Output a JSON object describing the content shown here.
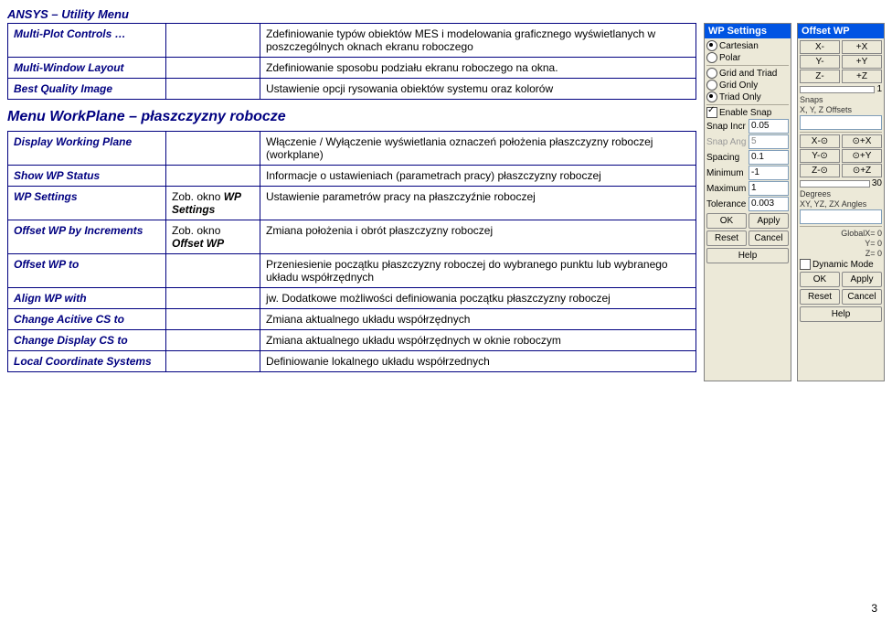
{
  "header": "ANSYS – Utility Menu",
  "table1_rows": [
    {
      "c1": "Multi-Plot Controls …",
      "c3": "Zdefiniowanie typów obiektów MES i modelowania graficznego wyświetlanych w poszczególnych oknach ekranu roboczego"
    },
    {
      "c1": "Multi-Window Layout",
      "c3": "Zdefiniowanie sposobu podziału ekranu roboczego na okna."
    },
    {
      "c1": "Best Quality Image",
      "c3": "Ustawienie opcji rysowania obiektów systemu oraz kolorów"
    }
  ],
  "section_title": "Menu WorkPlane – płaszczyzny robocze",
  "table2_rows": [
    {
      "c1": "Display Working Plane",
      "c2": "",
      "c3": "Włączenie / Wyłączenie wyświetlania oznaczeń położenia płaszczyzny roboczej (workplane)"
    },
    {
      "c1": "Show WP Status",
      "c2": "",
      "c3": "Informacje o ustawieniach (parametrach pracy) płaszczyzny roboczej"
    },
    {
      "c1": "WP Settings",
      "c2": "Zob. okno WP Settings",
      "c3": "Ustawienie parametrów pracy na płaszczyźnie roboczej"
    },
    {
      "c1": "Offset WP by Increments",
      "c2": "Zob. okno Offset WP",
      "c3": "Zmiana położenia i obrót płaszczyzny roboczej"
    },
    {
      "c1": "Offset WP to",
      "c2": "",
      "c3": "Przeniesienie początku płaszczyzny roboczej do wybranego punktu lub wybranego układu współrzędnych"
    },
    {
      "c1": "Align WP with",
      "c2": "",
      "c3": "jw. Dodatkowe możliwości definiowania początku płaszczyzny roboczej"
    },
    {
      "c1": "Change Acitive CS to",
      "c2": "",
      "c3": "Zmiana aktualnego układu współrzędnych"
    },
    {
      "c1": "Change Display CS to",
      "c2": "",
      "c3": "Zmiana aktualnego układu współrzędnych w oknie roboczym"
    },
    {
      "c1": "Local Coordinate Systems",
      "c2": "",
      "c3": "Definiowanie lokalnego układu współrzednych"
    }
  ],
  "wp_settings_panel": {
    "title": "WP Settings",
    "coord_opts": [
      {
        "label": "Cartesian",
        "checked": true
      },
      {
        "label": "Polar",
        "checked": false
      }
    ],
    "grid_opts": [
      {
        "label": "Grid and Triad",
        "checked": false
      },
      {
        "label": "Grid Only",
        "checked": false
      },
      {
        "label": "Triad Only",
        "checked": true
      }
    ],
    "enable_snap": {
      "label": "Enable Snap",
      "checked": true
    },
    "fields": [
      {
        "label": "Snap Incr",
        "value": "0.05",
        "gray": false
      },
      {
        "label": "Snap Ang",
        "value": "5",
        "gray": true
      },
      {
        "label": "Spacing",
        "value": "0.1",
        "gray": false
      },
      {
        "label": "Minimum",
        "value": "-1",
        "gray": false
      },
      {
        "label": "Maximum",
        "value": "1",
        "gray": false
      },
      {
        "label": "Tolerance",
        "value": "0.003",
        "gray": false
      }
    ],
    "btns": [
      "OK",
      "Apply",
      "Reset",
      "Cancel",
      "Help"
    ]
  },
  "offset_wp_panel": {
    "title": "Offset WP",
    "xyz_rows": [
      [
        "X-",
        "+X"
      ],
      [
        "Y-",
        "+Y"
      ],
      [
        "Z-",
        "+Z"
      ]
    ],
    "slider_label": "1",
    "snaps_label": "Snaps",
    "snaps_sub": "X, Y, Z Offsets",
    "rot_rows": [
      [
        "X-⊙",
        "⊙+X"
      ],
      [
        "Y-⊙",
        "⊙+Y"
      ],
      [
        "Z-⊙",
        "⊙+Z"
      ]
    ],
    "rot_slider_label": "30",
    "degrees": "Degrees",
    "angles": "XY, YZ, ZX Angles",
    "globals": [
      "GlobalX=   0",
      "Y=   0",
      "Z=   0"
    ],
    "dynamic_mode": {
      "label": "Dynamic Mode",
      "checked": false
    },
    "btns": [
      "OK",
      "Apply",
      "Reset",
      "Cancel",
      "Help"
    ]
  },
  "pagenum": "3"
}
